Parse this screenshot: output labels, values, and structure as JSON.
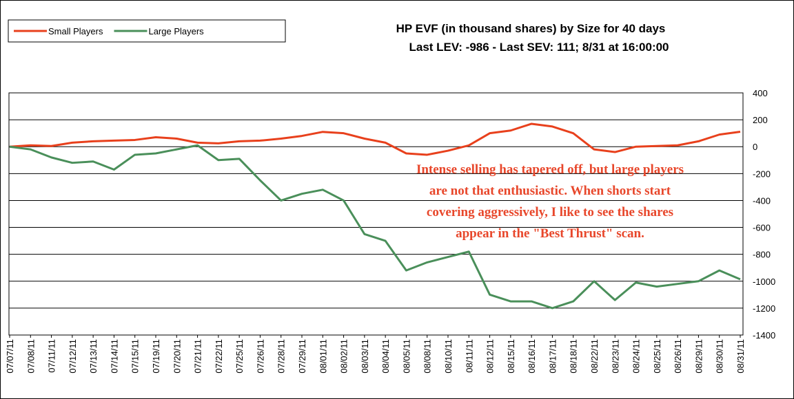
{
  "chart_data": {
    "type": "line",
    "title": "HP EVF (in thousand shares) by Size for 40 days",
    "subtitle": "Last LEV: -986 - Last SEV: 111; 8/31 at 16:00:00",
    "annotation": [
      "Intense selling has tapered off, but large players",
      "are not that enthusiastic. When shorts start",
      "covering aggressively, I like to see the shares",
      "appear in the \"Best Thrust\" scan."
    ],
    "categories": [
      "07/07/11",
      "07/08/11",
      "07/11/11",
      "07/12/11",
      "07/13/11",
      "07/14/11",
      "07/15/11",
      "07/19/11",
      "07/20/11",
      "07/21/11",
      "07/22/11",
      "07/25/11",
      "07/26/11",
      "07/28/11",
      "07/29/11",
      "08/01/11",
      "08/02/11",
      "08/03/11",
      "08/04/11",
      "08/05/11",
      "08/08/11",
      "08/10/11",
      "08/11/11",
      "08/12/11",
      "08/15/11",
      "08/16/11",
      "08/17/11",
      "08/18/11",
      "08/22/11",
      "08/23/11",
      "08/24/11",
      "08/25/11",
      "08/26/11",
      "08/29/11",
      "08/30/11",
      "08/31/11"
    ],
    "series": [
      {
        "name": "Small Players",
        "color": "#e8401c",
        "values": [
          0,
          10,
          5,
          30,
          40,
          45,
          50,
          70,
          60,
          30,
          25,
          40,
          45,
          60,
          80,
          110,
          100,
          60,
          30,
          -50,
          -60,
          -30,
          10,
          100,
          120,
          170,
          150,
          100,
          -20,
          -40,
          0,
          5,
          10,
          40,
          90,
          111
        ]
      },
      {
        "name": "Large Players",
        "color": "#4a8f5a",
        "values": [
          0,
          -20,
          -80,
          -120,
          -110,
          -170,
          -60,
          -50,
          -20,
          10,
          -100,
          -90,
          -250,
          -400,
          -350,
          -320,
          -400,
          -650,
          -700,
          -920,
          -860,
          -820,
          -780,
          -1100,
          -1150,
          -1150,
          -1200,
          -1150,
          -1000,
          -1140,
          -1010,
          -1040,
          -1020,
          -1000,
          -920,
          -986
        ]
      }
    ],
    "ylim": [
      -1400,
      400
    ],
    "yticks": [
      -1400,
      -1200,
      -1000,
      -800,
      -600,
      -400,
      -200,
      0,
      200,
      400
    ],
    "grid": true,
    "legend": "top-left"
  }
}
